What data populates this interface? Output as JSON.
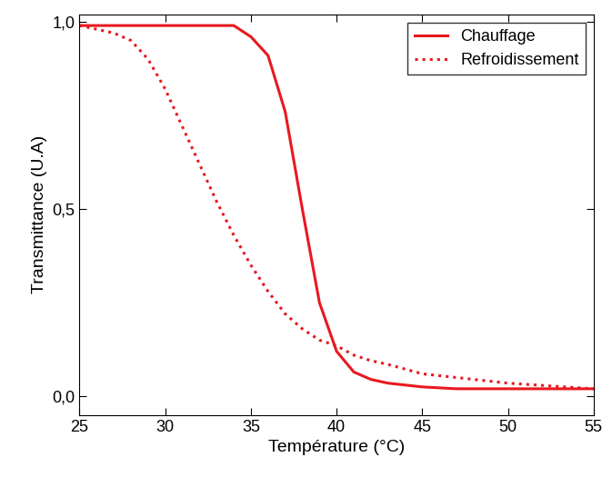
{
  "chart_data": {
    "type": "line",
    "x_label": "Température (°C)",
    "y_label": "Transmittance (U.A)",
    "xlim": [
      25,
      55
    ],
    "ylim": [
      -0.05,
      1.02
    ],
    "xticks": [
      25,
      30,
      35,
      40,
      45,
      50,
      55
    ],
    "yticks": [
      {
        "value": 0,
        "label": "0,0"
      },
      {
        "value": 0.5,
        "label": "0,5"
      },
      {
        "value": 1,
        "label": "1,0"
      }
    ],
    "legend": "upper right",
    "series": [
      {
        "name": "Chauffage",
        "color": "#e8191f",
        "line_style": "solid",
        "x": [
          25,
          26,
          27,
          28,
          29,
          30,
          31,
          32,
          33,
          34,
          35,
          36,
          37,
          38,
          39,
          40,
          41,
          42,
          43,
          45,
          47,
          50,
          55
        ],
        "values": [
          0.99,
          0.99,
          0.99,
          0.99,
          0.99,
          0.99,
          0.99,
          0.99,
          0.99,
          0.99,
          0.96,
          0.91,
          0.76,
          0.5,
          0.25,
          0.12,
          0.065,
          0.045,
          0.035,
          0.025,
          0.02,
          0.02,
          0.02
        ]
      },
      {
        "name": "Refroidissement",
        "color": "#e8191f",
        "line_style": "dotted",
        "x": [
          25,
          26,
          27,
          28,
          29,
          30,
          31,
          32,
          33,
          34,
          35,
          36,
          37,
          38,
          39,
          40,
          41,
          42,
          43,
          45,
          50,
          55
        ],
        "values": [
          0.99,
          0.98,
          0.97,
          0.95,
          0.9,
          0.82,
          0.72,
          0.62,
          0.52,
          0.43,
          0.35,
          0.28,
          0.22,
          0.18,
          0.15,
          0.135,
          0.11,
          0.095,
          0.085,
          0.06,
          0.035,
          0.02
        ]
      }
    ]
  }
}
